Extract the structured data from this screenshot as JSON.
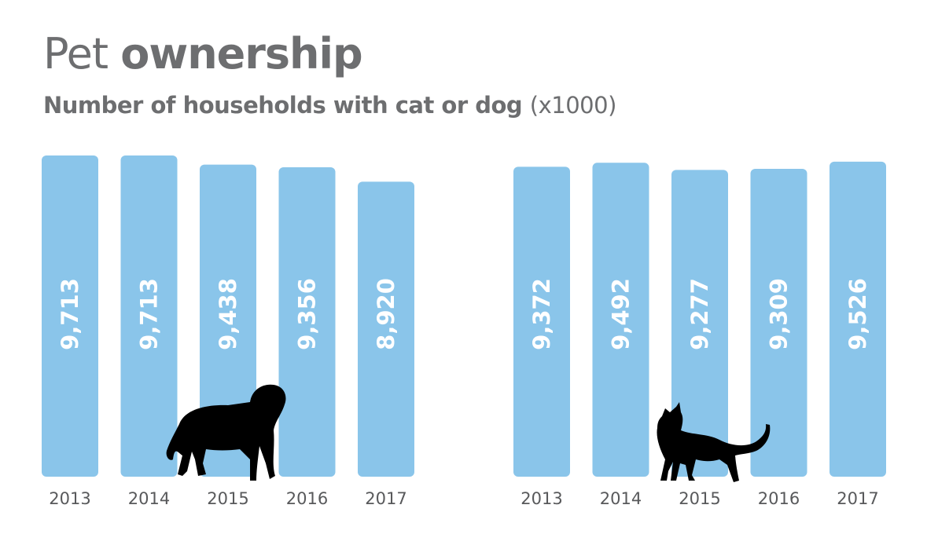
{
  "title_part1": "Pet",
  "title_part2": "ownership",
  "subtitle_main": "Number of households with cat or dog",
  "subtitle_unit": "(x1000)",
  "colors": {
    "bar": "#8ac5ea",
    "text": "#6d6e70",
    "silhouette": "#000000"
  },
  "chart_data": [
    {
      "type": "bar",
      "name": "dog",
      "icon": "dog-silhouette",
      "categories": [
        "2013",
        "2014",
        "2015",
        "2016",
        "2017"
      ],
      "values": [
        9713,
        9713,
        9438,
        9356,
        8920
      ],
      "labels": [
        "9,713",
        "9,713",
        "9,438",
        "9,356",
        "8,920"
      ],
      "ylim": [
        0,
        9713
      ]
    },
    {
      "type": "bar",
      "name": "cat",
      "icon": "cat-silhouette",
      "categories": [
        "2013",
        "2014",
        "2015",
        "2016",
        "2017"
      ],
      "values": [
        9372,
        9492,
        9277,
        9309,
        9526
      ],
      "labels": [
        "9,372",
        "9,492",
        "9,277",
        "9,309",
        "9,526"
      ],
      "ylim": [
        0,
        9713
      ]
    }
  ]
}
